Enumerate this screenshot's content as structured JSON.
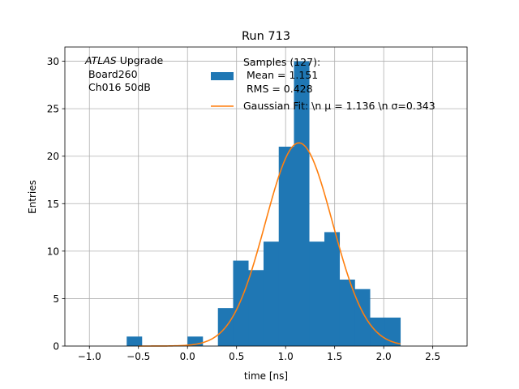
{
  "chart_data": {
    "type": "bar",
    "title": "Run 713",
    "xlabel": "time [ns]",
    "ylabel": "Entries",
    "xlim": [
      -1.25,
      2.85
    ],
    "ylim": [
      0,
      31.5
    ],
    "grid": true,
    "x_ticks": [
      -1.0,
      -0.5,
      0.0,
      0.5,
      1.0,
      1.5,
      2.0,
      2.5
    ],
    "x_tick_labels": [
      "−1.0",
      "−0.5",
      "0.0",
      "0.5",
      "1.0",
      "1.5",
      "2.0",
      "2.5"
    ],
    "y_ticks": [
      0,
      5,
      10,
      15,
      20,
      25,
      30
    ],
    "y_tick_labels": [
      "0",
      "5",
      "10",
      "15",
      "20",
      "25",
      "30"
    ],
    "annotation": {
      "italic_part": "ATLAS",
      "line1_rest": " Upgrade",
      "line2": " Board260",
      "line3": " Ch016 50dB"
    },
    "legend_position": "top-right",
    "legend": {
      "hist_lines": [
        "Samples (127):",
        " Mean = 1.151",
        " RMS = 0.428"
      ],
      "fit_label": "Gaussian Fit: \\n μ = 1.136 \\n σ=0.343"
    },
    "histogram": {
      "name": "Samples (127)",
      "color": "#1f77b4",
      "bin_edges": [
        -0.62,
        -0.465,
        -0.31,
        -0.155,
        0.0,
        0.155,
        0.31,
        0.465,
        0.62,
        0.775,
        0.93,
        1.085,
        1.24,
        1.395,
        1.55,
        1.705,
        1.86,
        2.015,
        2.17
      ],
      "counts": [
        1,
        0,
        0,
        0,
        1,
        0,
        4,
        9,
        8,
        11,
        21,
        30,
        11,
        12,
        7,
        6,
        3,
        3
      ]
    },
    "fit": {
      "name": "Gaussian Fit",
      "color": "#ff7f0e",
      "amplitude": 21.4,
      "mean": 1.136,
      "sigma": 0.343,
      "x_range": [
        -0.5,
        2.17
      ]
    }
  }
}
